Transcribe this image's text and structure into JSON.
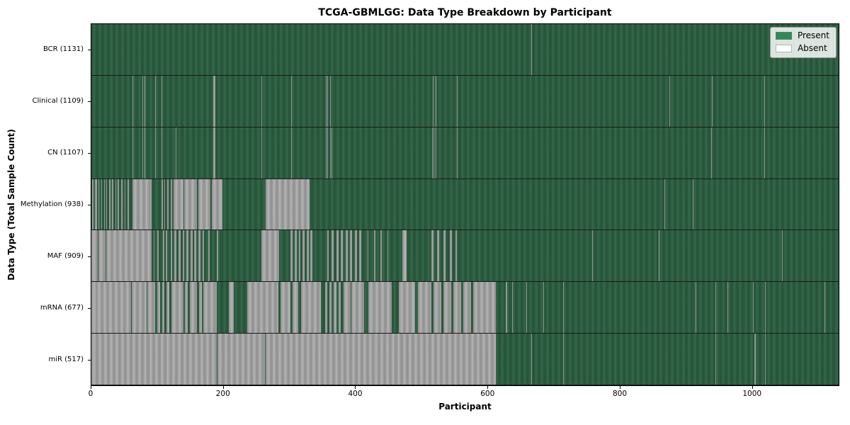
{
  "title": "TCGA-GBMLGG: Data Type Breakdown by Participant",
  "xlabel": "Participant",
  "ylabel": "Data Type (Total Sample Count)",
  "legend": {
    "items": [
      {
        "label": "Present",
        "color": "#2e8b57"
      },
      {
        "label": "Absent",
        "color": "#ffffff"
      }
    ]
  },
  "colors": {
    "present": "#2e8b57",
    "absent": "#ffffff",
    "present_fill_dark": "#2d5c40",
    "absent_fill_gray": "#a2a2a2",
    "axis": "#000000"
  },
  "chart_data": {
    "type": "heatmap",
    "title": "TCGA-GBMLGG: Data Type Breakdown by Participant",
    "xlabel": "Participant",
    "ylabel": "Data Type (Total Sample Count)",
    "legend_position": "upper right",
    "n_participants": 1132,
    "xlim": [
      0,
      1132
    ],
    "x_ticks": [
      0,
      200,
      400,
      600,
      800,
      1000
    ],
    "states": [
      "Present",
      "Absent"
    ],
    "rows": [
      {
        "name": "BCR",
        "label": "BCR (1131)",
        "present_count": 1131,
        "absent_segments": [
          [
            666,
            667
          ]
        ]
      },
      {
        "name": "Clinical",
        "label": "Clinical (1109)",
        "present_count": 1109,
        "absent_segments": [
          [
            62,
            63
          ],
          [
            77,
            78
          ],
          [
            80,
            81
          ],
          [
            97,
            98
          ],
          [
            106,
            107
          ],
          [
            185,
            188
          ],
          [
            258,
            259
          ],
          [
            303,
            304
          ],
          [
            355,
            356
          ],
          [
            357,
            358
          ],
          [
            362,
            363
          ],
          [
            517,
            518
          ],
          [
            521,
            522
          ],
          [
            554,
            555
          ],
          [
            876,
            877
          ],
          [
            940,
            941
          ],
          [
            1019,
            1020
          ]
        ]
      },
      {
        "name": "CN",
        "label": "CN (1107)",
        "present_count": 1107,
        "absent_segments": [
          [
            62,
            63
          ],
          [
            77,
            78
          ],
          [
            80,
            81
          ],
          [
            97,
            98
          ],
          [
            106,
            107
          ],
          [
            128,
            129
          ],
          [
            185,
            188
          ],
          [
            258,
            259
          ],
          [
            303,
            304
          ],
          [
            355,
            356
          ],
          [
            357,
            358
          ],
          [
            362,
            363
          ],
          [
            364,
            365
          ],
          [
            516,
            517
          ],
          [
            518,
            519
          ],
          [
            522,
            523
          ],
          [
            554,
            555
          ],
          [
            939,
            940
          ],
          [
            1019,
            1020
          ]
        ]
      },
      {
        "name": "Methylation",
        "label": "Methylation (938)",
        "present_count": 938,
        "absent_segments": [
          [
            1,
            3
          ],
          [
            5,
            9
          ],
          [
            11,
            12
          ],
          [
            15,
            16
          ],
          [
            19,
            20
          ],
          [
            23,
            24
          ],
          [
            27,
            29
          ],
          [
            31,
            33
          ],
          [
            36,
            38
          ],
          [
            40,
            42
          ],
          [
            45,
            47
          ],
          [
            50,
            52
          ],
          [
            55,
            57
          ],
          [
            62,
            91
          ],
          [
            106,
            108
          ],
          [
            110,
            112
          ],
          [
            115,
            117
          ],
          [
            120,
            122
          ],
          [
            124,
            140
          ],
          [
            141,
            160
          ],
          [
            162,
            180
          ],
          [
            182,
            199
          ],
          [
            264,
            331
          ],
          [
            868,
            869
          ],
          [
            911,
            912
          ]
        ]
      },
      {
        "name": "MAF",
        "label": "MAF (909)",
        "present_count": 909,
        "absent_segments": [
          [
            0,
            10
          ],
          [
            11,
            21
          ],
          [
            22,
            91
          ],
          [
            94,
            96
          ],
          [
            100,
            102
          ],
          [
            108,
            110
          ],
          [
            113,
            115
          ],
          [
            120,
            122
          ],
          [
            126,
            129
          ],
          [
            132,
            135
          ],
          [
            138,
            141
          ],
          [
            144,
            147
          ],
          [
            150,
            153
          ],
          [
            156,
            159
          ],
          [
            162,
            165
          ],
          [
            168,
            171
          ],
          [
            177,
            179
          ],
          [
            190,
            192
          ],
          [
            257,
            284
          ],
          [
            302,
            305
          ],
          [
            308,
            311
          ],
          [
            314,
            317
          ],
          [
            320,
            323
          ],
          [
            326,
            329
          ],
          [
            332,
            335
          ],
          [
            357,
            360
          ],
          [
            364,
            367
          ],
          [
            371,
            374
          ],
          [
            378,
            381
          ],
          [
            385,
            388
          ],
          [
            392,
            395
          ],
          [
            399,
            402
          ],
          [
            406,
            409
          ],
          [
            418,
            420
          ],
          [
            428,
            430
          ],
          [
            438,
            440
          ],
          [
            448,
            450
          ],
          [
            471,
            478
          ],
          [
            515,
            518
          ],
          [
            524,
            527
          ],
          [
            533,
            536
          ],
          [
            543,
            546
          ],
          [
            551,
            554
          ],
          [
            759,
            760
          ],
          [
            859,
            860
          ],
          [
            1046,
            1047
          ]
        ]
      },
      {
        "name": "mRNA",
        "label": "mRNA (677)",
        "present_count": 677,
        "absent_segments": [
          [
            0,
            7
          ],
          [
            8,
            60
          ],
          [
            61,
            84
          ],
          [
            85,
            97
          ],
          [
            100,
            104
          ],
          [
            107,
            111
          ],
          [
            114,
            118
          ],
          [
            121,
            139
          ],
          [
            142,
            146
          ],
          [
            149,
            160
          ],
          [
            163,
            167
          ],
          [
            170,
            190
          ],
          [
            208,
            216
          ],
          [
            236,
            283
          ],
          [
            286,
            302
          ],
          [
            305,
            313
          ],
          [
            318,
            348
          ],
          [
            354,
            357
          ],
          [
            360,
            364
          ],
          [
            367,
            371
          ],
          [
            374,
            378
          ],
          [
            382,
            393
          ],
          [
            394,
            413
          ],
          [
            420,
            455
          ],
          [
            466,
            490
          ],
          [
            495,
            515
          ],
          [
            518,
            530
          ],
          [
            533,
            545
          ],
          [
            548,
            560
          ],
          [
            563,
            575
          ],
          [
            578,
            613
          ],
          [
            628,
            630
          ],
          [
            637,
            638
          ],
          [
            659,
            660
          ],
          [
            685,
            686
          ],
          [
            715,
            716
          ],
          [
            915,
            916
          ],
          [
            945,
            946
          ],
          [
            964,
            965
          ],
          [
            1002,
            1003
          ],
          [
            1020,
            1021
          ],
          [
            1111,
            1112
          ]
        ]
      },
      {
        "name": "miR",
        "label": "miR (517)",
        "present_count": 517,
        "absent_segments": [
          [
            0,
            190
          ],
          [
            191,
            263
          ],
          [
            264,
            613
          ],
          [
            666,
            667
          ],
          [
            715,
            716
          ],
          [
            945,
            946
          ],
          [
            1004,
            1006
          ],
          [
            1020,
            1021
          ]
        ]
      }
    ]
  }
}
